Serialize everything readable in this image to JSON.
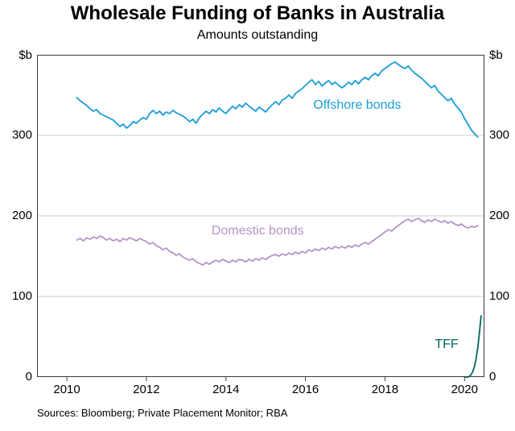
{
  "chart_data": {
    "type": "line",
    "title": "Wholesale Funding of Banks in Australia",
    "subtitle": "Amounts outstanding",
    "unit_label": "$b",
    "source_note": "Sources: Bloomberg; Private Placement Monitor; RBA",
    "xlim": [
      2009.25,
      2020.5
    ],
    "ylim": [
      0,
      400
    ],
    "yticks": [
      0,
      100,
      200,
      300
    ],
    "xticks": [
      2010,
      2012,
      2014,
      2016,
      2018,
      2020
    ],
    "grid": true,
    "legend_position": "inline-annotations",
    "colors": {
      "grid": "#cccccc",
      "frame": "#3c3c3c",
      "text": "#000000"
    },
    "series": [
      {
        "name": "Offshore bonds",
        "color": "#1b9dd9",
        "x_start": 2010.25,
        "x_step": 0.083333,
        "values": [
          347,
          343,
          340,
          337,
          333,
          330,
          332,
          327,
          325,
          323,
          321,
          319,
          315,
          311,
          314,
          309,
          312,
          317,
          315,
          319,
          322,
          320,
          327,
          331,
          327,
          330,
          325,
          329,
          327,
          331,
          328,
          326,
          324,
          321,
          317,
          320,
          315,
          322,
          326,
          330,
          327,
          332,
          329,
          334,
          330,
          327,
          332,
          336,
          333,
          338,
          335,
          340,
          336,
          333,
          330,
          335,
          332,
          329,
          334,
          338,
          342,
          338,
          344,
          346,
          350,
          346,
          352,
          355,
          358,
          362,
          366,
          369,
          363,
          367,
          361,
          365,
          368,
          363,
          366,
          362,
          359,
          362,
          366,
          363,
          368,
          364,
          369,
          372,
          369,
          374,
          377,
          374,
          380,
          383,
          386,
          389,
          391,
          388,
          385,
          383,
          386,
          381,
          377,
          374,
          371,
          367,
          363,
          359,
          362,
          355,
          351,
          347,
          343,
          346,
          339,
          334,
          329,
          321,
          314,
          307,
          302,
          298
        ]
      },
      {
        "name": "Domestic bonds",
        "color": "#b692c6",
        "x_start": 2010.25,
        "x_step": 0.083333,
        "values": [
          170,
          172,
          169,
          173,
          171,
          174,
          172,
          175,
          173,
          170,
          172,
          169,
          171,
          168,
          172,
          170,
          173,
          171,
          169,
          172,
          170,
          168,
          165,
          167,
          163,
          161,
          158,
          160,
          156,
          154,
          151,
          153,
          149,
          147,
          145,
          147,
          143,
          141,
          139,
          142,
          140,
          143,
          145,
          143,
          146,
          144,
          142,
          145,
          143,
          146,
          145,
          143,
          146,
          144,
          147,
          145,
          148,
          146,
          149,
          151,
          152,
          150,
          153,
          151,
          154,
          152,
          155,
          153,
          156,
          154,
          158,
          156,
          159,
          157,
          160,
          158,
          161,
          159,
          162,
          160,
          162,
          160,
          163,
          161,
          164,
          162,
          165,
          167,
          165,
          168,
          171,
          174,
          177,
          180,
          183,
          181,
          185,
          188,
          191,
          194,
          196,
          193,
          195,
          197,
          194,
          192,
          195,
          193,
          196,
          194,
          192,
          194,
          191,
          193,
          190,
          188,
          190,
          187,
          185,
          187,
          186,
          188
        ]
      },
      {
        "name": "TFF",
        "color": "#00665c",
        "x_start": 2020.0,
        "x_step": 0.041667,
        "values": [
          0,
          0,
          0,
          1,
          3,
          7,
          13,
          23,
          37,
          55,
          76
        ]
      }
    ],
    "annotations": [
      {
        "text": "Offshore bonds",
        "x": 2017.3,
        "y": 337,
        "color": "#1b9dd9"
      },
      {
        "text": "Domestic bonds",
        "x": 2014.8,
        "y": 181,
        "color": "#b692c6"
      },
      {
        "text": "TFF",
        "x": 2019.55,
        "y": 40,
        "color": "#00665c"
      }
    ]
  }
}
